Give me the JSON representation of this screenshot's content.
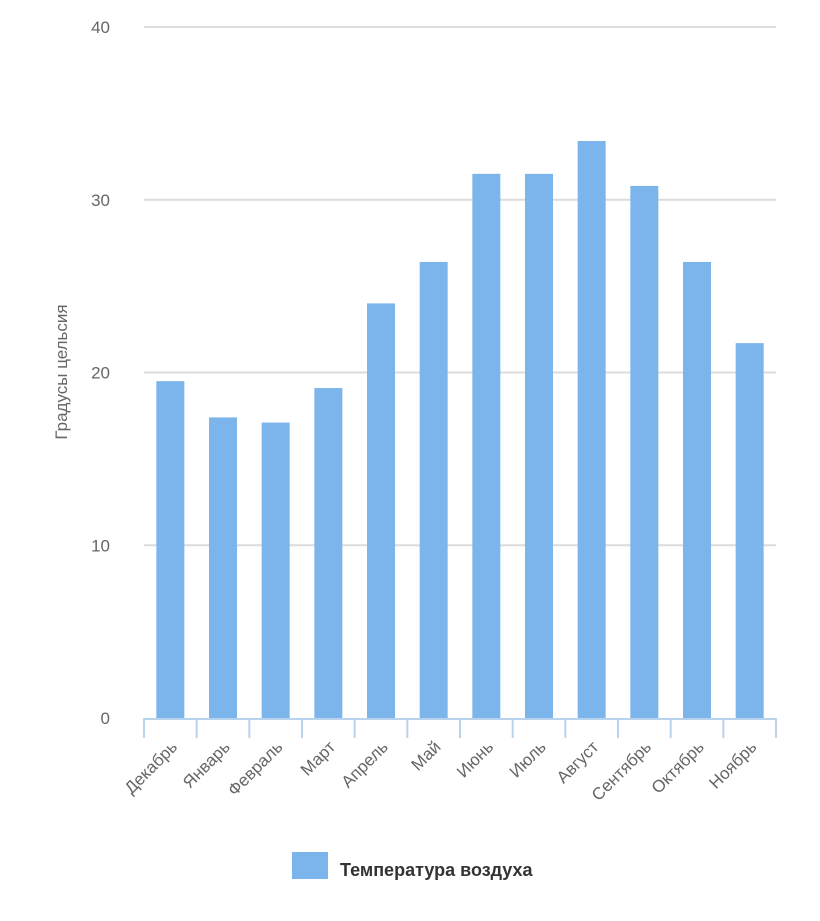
{
  "chart_data": {
    "type": "bar",
    "title": "",
    "xlabel": "",
    "ylabel": "Градусы цельсия",
    "ylim": [
      0,
      40
    ],
    "yticks": [
      0,
      10,
      20,
      30,
      40
    ],
    "grid": true,
    "legend_position": "bottom",
    "categories": [
      "Декабрь",
      "Январь",
      "Февраль",
      "Март",
      "Апрель",
      "Май",
      "Июнь",
      "Июль",
      "Август",
      "Сентябрь",
      "Октябрь",
      "Ноябрь"
    ],
    "series": [
      {
        "name": "Температура воздуха",
        "color": "#7cb5ec",
        "values": [
          19.5,
          17.4,
          17.1,
          19.1,
          24.0,
          26.4,
          31.5,
          31.5,
          33.4,
          30.8,
          26.4,
          21.7
        ]
      }
    ]
  }
}
